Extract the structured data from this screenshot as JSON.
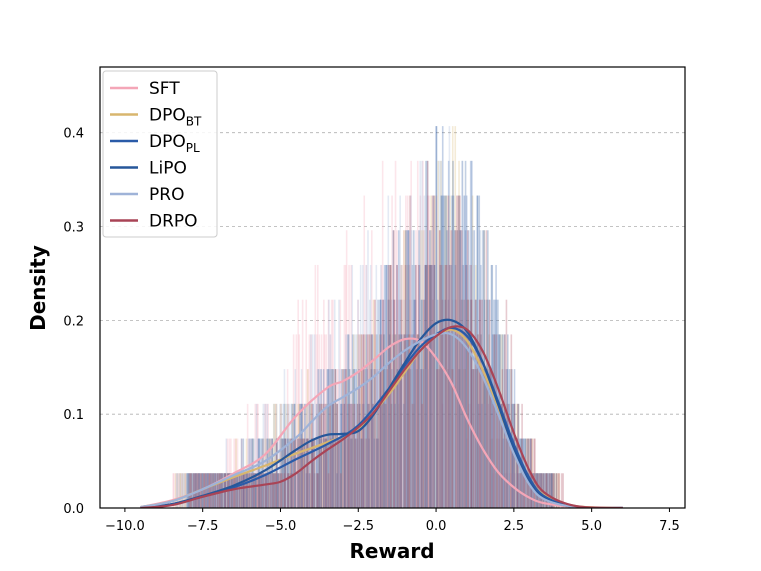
{
  "chart_data": {
    "type": "line",
    "xlabel": "Reward",
    "ylabel": "Density",
    "xlim": [
      -10.8,
      8.0
    ],
    "ylim": [
      0,
      0.47
    ],
    "xticks": [
      "−10.0",
      "−7.5",
      "−5.0",
      "−2.5",
      "0.0",
      "2.5",
      "5.0",
      "7.5"
    ],
    "yticks": [
      "0.0",
      "0.1",
      "0.2",
      "0.3",
      "0.4"
    ],
    "grid": "horizontal-dashed",
    "legend_position": "top-left",
    "series": [
      {
        "name": "SFT",
        "name_main": "SFT",
        "name_sub": "",
        "color": "#f4a6b7",
        "x": [
          -9.5,
          -8.5,
          -7.5,
          -6.5,
          -5.5,
          -4.5,
          -3.5,
          -3.0,
          -2.5,
          -2.0,
          -1.5,
          -1.0,
          -0.5,
          0.0,
          0.5,
          1.0,
          1.5,
          2.0,
          2.5,
          3.0,
          3.5,
          4.5,
          6.0
        ],
        "y": [
          0.001,
          0.008,
          0.02,
          0.037,
          0.057,
          0.098,
          0.128,
          0.135,
          0.145,
          0.158,
          0.172,
          0.18,
          0.178,
          0.16,
          0.133,
          0.095,
          0.063,
          0.038,
          0.022,
          0.011,
          0.005,
          0.001,
          0.0
        ]
      },
      {
        "name": "DPO_BT",
        "name_main": "DPO",
        "name_sub": "BT",
        "color": "#d8b66e",
        "x": [
          -9.5,
          -8.5,
          -7.5,
          -6.5,
          -5.5,
          -4.5,
          -3.5,
          -2.5,
          -1.5,
          -1.0,
          -0.5,
          0.0,
          0.5,
          1.0,
          1.5,
          2.0,
          2.5,
          3.0,
          3.5,
          4.5,
          6.0
        ],
        "y": [
          0.001,
          0.007,
          0.02,
          0.033,
          0.045,
          0.058,
          0.07,
          0.085,
          0.122,
          0.145,
          0.168,
          0.183,
          0.19,
          0.178,
          0.147,
          0.107,
          0.065,
          0.032,
          0.013,
          0.002,
          0.0
        ]
      },
      {
        "name": "DPO_PL",
        "name_main": "DPO",
        "name_sub": "PL",
        "color": "#2a5ba8",
        "x": [
          -9.5,
          -8.5,
          -7.5,
          -6.5,
          -5.5,
          -4.5,
          -3.5,
          -2.5,
          -1.5,
          -1.0,
          -0.5,
          0.0,
          0.5,
          1.0,
          1.5,
          2.0,
          2.5,
          3.0,
          3.5,
          4.5,
          6.0
        ],
        "y": [
          0.0,
          0.004,
          0.012,
          0.022,
          0.035,
          0.052,
          0.068,
          0.088,
          0.128,
          0.152,
          0.172,
          0.185,
          0.192,
          0.183,
          0.155,
          0.113,
          0.068,
          0.032,
          0.012,
          0.001,
          0.0
        ]
      },
      {
        "name": "LiPO",
        "name_main": "LiPO",
        "name_sub": "",
        "color": "#26579a",
        "x": [
          -9.5,
          -8.5,
          -7.5,
          -6.5,
          -5.5,
          -4.5,
          -4.0,
          -3.5,
          -3.0,
          -2.5,
          -2.0,
          -1.5,
          -1.0,
          -0.5,
          0.0,
          0.5,
          1.0,
          1.5,
          2.0,
          2.5,
          3.0,
          3.5,
          4.5,
          6.0
        ],
        "y": [
          0.0,
          0.004,
          0.013,
          0.024,
          0.04,
          0.062,
          0.072,
          0.078,
          0.079,
          0.082,
          0.1,
          0.128,
          0.155,
          0.18,
          0.197,
          0.2,
          0.188,
          0.155,
          0.11,
          0.063,
          0.028,
          0.01,
          0.001,
          0.0
        ]
      },
      {
        "name": "PRO",
        "name_main": "PRO",
        "name_sub": "",
        "color": "#9fb3d8",
        "x": [
          -9.5,
          -8.5,
          -7.5,
          -6.5,
          -5.5,
          -4.5,
          -4.0,
          -3.5,
          -3.0,
          -2.5,
          -2.0,
          -1.5,
          -1.0,
          -0.5,
          0.0,
          0.5,
          1.0,
          1.5,
          2.0,
          2.5,
          3.0,
          3.5,
          4.5,
          6.0
        ],
        "y": [
          0.001,
          0.007,
          0.02,
          0.035,
          0.05,
          0.075,
          0.092,
          0.108,
          0.118,
          0.128,
          0.14,
          0.155,
          0.168,
          0.178,
          0.185,
          0.185,
          0.17,
          0.14,
          0.1,
          0.058,
          0.025,
          0.009,
          0.001,
          0.0
        ]
      },
      {
        "name": "DRPO",
        "name_main": "DRPO",
        "name_sub": "",
        "color": "#a94456",
        "x": [
          -9.5,
          -8.5,
          -7.5,
          -6.5,
          -5.5,
          -5.0,
          -4.5,
          -4.0,
          -3.5,
          -3.0,
          -2.5,
          -2.0,
          -1.5,
          -1.0,
          -0.5,
          0.0,
          0.5,
          1.0,
          1.5,
          2.0,
          2.5,
          3.0,
          3.5,
          4.5,
          6.0
        ],
        "y": [
          0.0,
          0.003,
          0.012,
          0.02,
          0.025,
          0.028,
          0.037,
          0.05,
          0.062,
          0.073,
          0.086,
          0.102,
          0.125,
          0.148,
          0.168,
          0.183,
          0.193,
          0.19,
          0.167,
          0.127,
          0.08,
          0.04,
          0.016,
          0.002,
          0.0
        ]
      }
    ]
  }
}
